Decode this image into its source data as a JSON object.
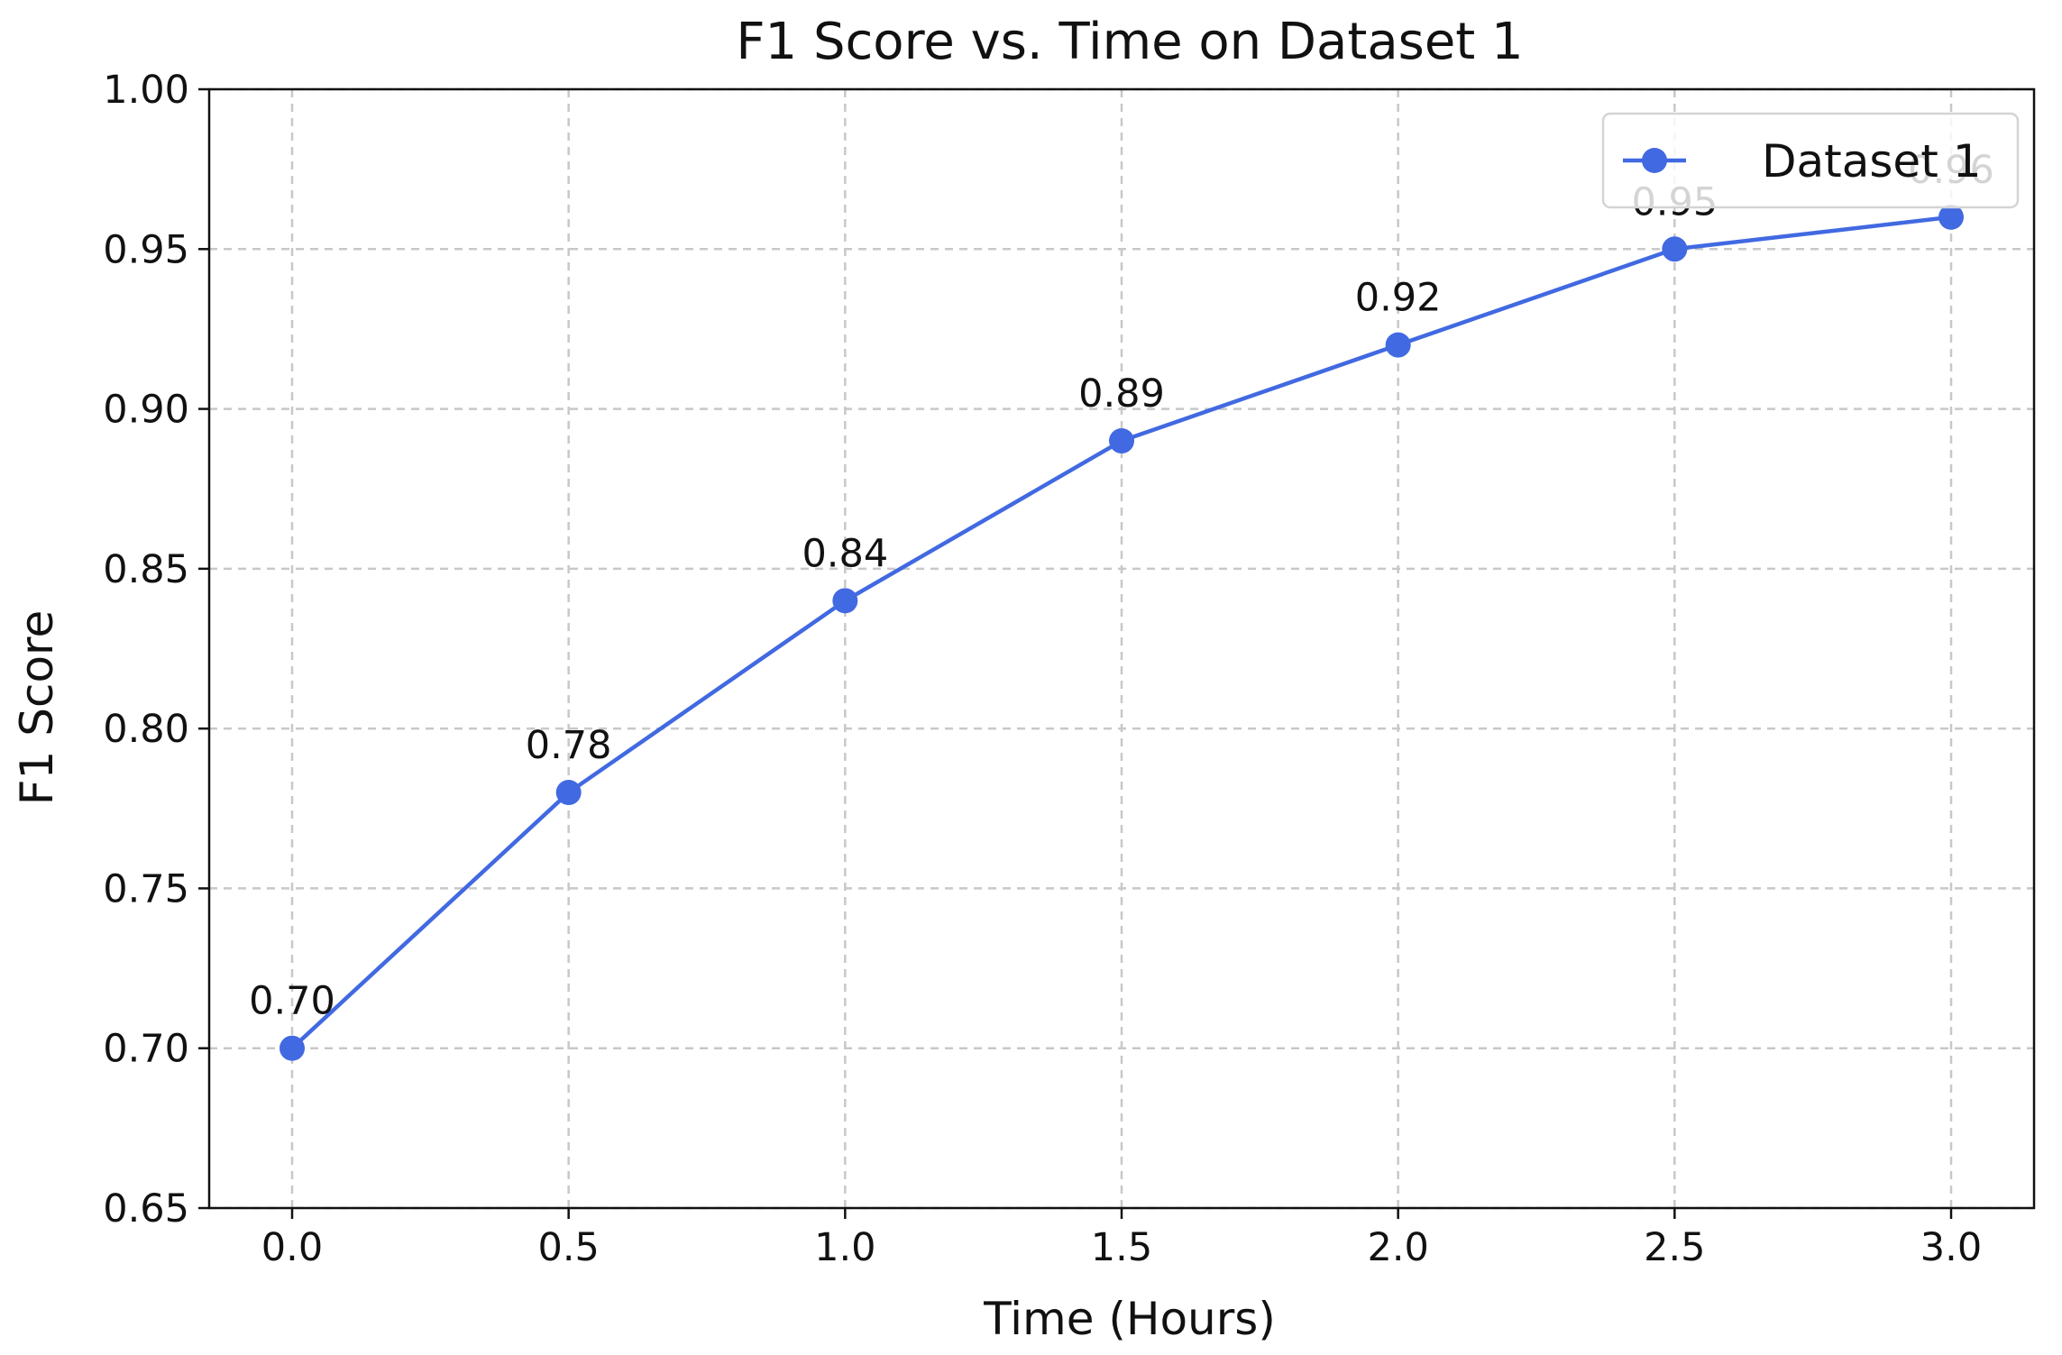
{
  "chart_data": {
    "type": "line",
    "title": "F1 Score vs. Time on Dataset 1",
    "xlabel": "Time (Hours)",
    "ylabel": "F1 Score",
    "x": [
      0.0,
      0.5,
      1.0,
      1.5,
      2.0,
      2.5,
      3.0
    ],
    "xlim": [
      -0.15,
      3.15
    ],
    "ylim": [
      0.65,
      1.0
    ],
    "x_ticks": [
      "0.0",
      "0.5",
      "1.0",
      "1.5",
      "2.0",
      "2.5",
      "3.0"
    ],
    "y_ticks": [
      "0.65",
      "0.70",
      "0.75",
      "0.80",
      "0.85",
      "0.90",
      "0.95",
      "1.00"
    ],
    "grid": true,
    "legend_position": "top-right",
    "series": [
      {
        "name": "Dataset 1",
        "color": "#4169e1",
        "marker": "circle",
        "values": [
          0.7,
          0.78,
          0.84,
          0.89,
          0.92,
          0.95,
          0.96
        ],
        "data_labels": [
          "0.70",
          "0.78",
          "0.84",
          "0.89",
          "0.92",
          "0.95",
          "0.96"
        ]
      }
    ]
  }
}
